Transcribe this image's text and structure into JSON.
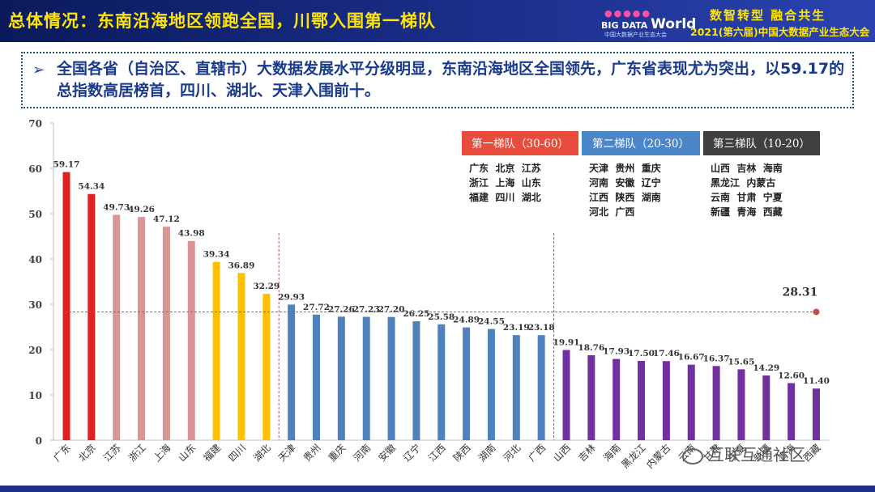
{
  "header": {
    "title": "总体情况：东南沿海地区领跑全国，川鄂入围第一梯队",
    "logo_dots": "●●●●●",
    "logo_text_a": "BIG DATA ",
    "logo_text_b": "World",
    "logo_sub": "中国大数据产业生态大会",
    "slogan": "数智转型 融合共生",
    "conference": "2021(第六届)中国大数据产业生态大会"
  },
  "summary": {
    "arrow": "➢",
    "text": "全国各省（自治区、直辖市）大数据发展水平分级明显，东南沿海地区全国领先，广东省表现尤为突出，以59.17的总指数高居榜首，四川、湖北、天津入围前十。"
  },
  "watermark": "互联互通社区",
  "colors": {
    "header_bg": "#1b2f8a",
    "title_yellow": "#ffe600",
    "red": "#e02020",
    "pink": "#d99594",
    "gold": "#ffc000",
    "blue": "#4f81bd",
    "purple": "#7030a0",
    "tier1_legend": "#e84c3d",
    "tier2_legend": "#4a86c8",
    "tier3_legend": "#404040",
    "avg_line": "#c0504d"
  },
  "chart_data": {
    "type": "bar",
    "categories": [
      "广东",
      "北京",
      "江苏",
      "浙江",
      "上海",
      "山东",
      "福建",
      "四川",
      "湖北",
      "天津",
      "贵州",
      "重庆",
      "河南",
      "安徽",
      "辽宁",
      "江西",
      "陕西",
      "湖南",
      "河北",
      "广西",
      "山西",
      "吉林",
      "海南",
      "黑龙江",
      "内蒙古",
      "云南",
      "甘肃",
      "宁夏",
      "新疆",
      "青海",
      "西藏"
    ],
    "values": [
      59.17,
      54.34,
      49.73,
      49.26,
      47.12,
      43.98,
      39.34,
      36.89,
      32.29,
      29.93,
      27.72,
      27.26,
      27.23,
      27.2,
      26.25,
      25.58,
      24.89,
      24.55,
      23.19,
      23.18,
      19.91,
      18.76,
      17.93,
      17.5,
      17.46,
      16.67,
      16.37,
      15.65,
      14.29,
      12.6,
      11.4
    ],
    "bar_colors": [
      "red",
      "red",
      "pink",
      "pink",
      "pink",
      "pink",
      "gold",
      "gold",
      "gold",
      "blue",
      "blue",
      "blue",
      "blue",
      "blue",
      "blue",
      "blue",
      "blue",
      "blue",
      "blue",
      "blue",
      "purple",
      "purple",
      "purple",
      "purple",
      "purple",
      "purple",
      "purple",
      "purple",
      "purple",
      "purple",
      "purple"
    ],
    "value_labels": [
      "59.17",
      "54.34",
      "49.73",
      "49.26",
      "47.12",
      "43.98",
      "39.34",
      "36.89",
      "32.29",
      "29.93",
      "27.72",
      "27.26",
      "27.23",
      "27.20",
      "26.25",
      "25.58",
      "24.89",
      "24.55",
      "23.19",
      "23.18",
      "19.91",
      "18.76",
      "17.93",
      "17.50",
      "17.46",
      "16.67",
      "16.37",
      "15.65",
      "14.29",
      "12.60",
      "11.40"
    ],
    "ylim": [
      0,
      70
    ],
    "yticks": [
      0,
      10,
      20,
      30,
      40,
      50,
      60,
      70
    ],
    "average": {
      "value": 28.31,
      "label": "28.31"
    },
    "tier_dividers_after_index": [
      8,
      19
    ],
    "tiers": [
      {
        "label": "第一梯队（30-60）",
        "color": "tier1_legend",
        "members": [
          "广东  北京  江苏",
          "浙江  上海  山东",
          "福建  四川  湖北"
        ]
      },
      {
        "label": "第二梯队（20-30）",
        "color": "tier2_legend",
        "members": [
          "天津  贵州  重庆",
          "河南  安徽  辽宁",
          "江西  陕西  湖南",
          "河北  广西"
        ]
      },
      {
        "label": "第三梯队（10-20）",
        "color": "tier3_legend",
        "members": [
          "山西  吉林  海南",
          "黑龙江  内蒙古",
          "云南  甘肃  宁夏",
          "新疆  青海  西藏"
        ]
      }
    ]
  }
}
